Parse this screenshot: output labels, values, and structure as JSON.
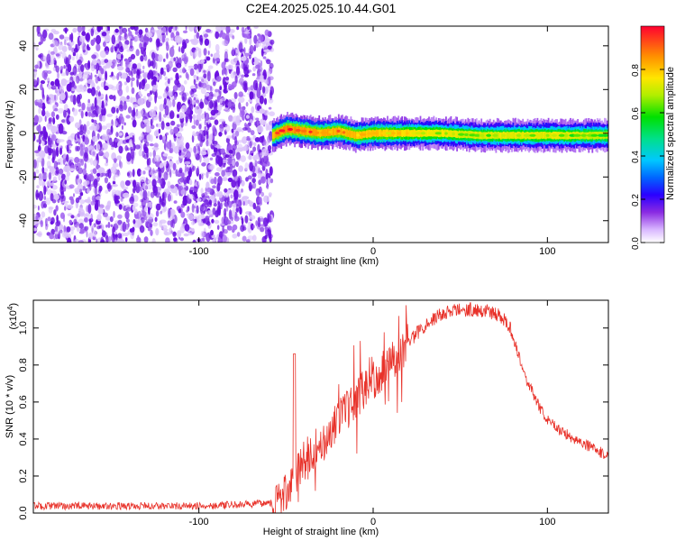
{
  "title": "C2E4.2025.025.10.44.G01",
  "chart_data": [
    {
      "type": "heatmap",
      "xlabel": "Height of straight line (km)",
      "ylabel": "Frequency (Hz)",
      "xlim": [
        -195,
        135
      ],
      "ylim": [
        -50,
        49
      ],
      "xticks": [
        -100,
        0,
        100
      ],
      "yticks": [
        -40,
        -20,
        0,
        20,
        40
      ],
      "noise_region_x": [
        -195,
        -58
      ],
      "signal_track": {
        "x": [
          -58,
          -50,
          -40,
          -30,
          -20,
          -10,
          0,
          20,
          40,
          60,
          80,
          100,
          120,
          135
        ],
        "center_hz": [
          -1,
          2,
          1,
          0,
          1,
          -1,
          0,
          0,
          0,
          -1,
          -1,
          -1,
          -1,
          -1
        ],
        "peak_amplitude": [
          0.9,
          1.0,
          0.95,
          0.9,
          0.9,
          0.85,
          0.85,
          0.8,
          0.7,
          0.65,
          0.7,
          0.7,
          0.65,
          0.6
        ]
      },
      "colorbar": {
        "label": "Normalized spectral amplitude",
        "range": [
          0,
          1
        ],
        "ticks": [
          "0.0",
          "0.2",
          "0.4",
          "0.6",
          "0.8"
        ]
      }
    },
    {
      "type": "line",
      "xlabel": "Height of straight line (km)",
      "ylabel": "SNR (10 * v/v)",
      "y_multiplier": "(x10",
      "y_multiplier_exp": "4",
      "y_multiplier_close": ")",
      "xlim": [
        -195,
        135
      ],
      "ylim": [
        0,
        1.15
      ],
      "xticks": [
        -100,
        0,
        100
      ],
      "yticks": [
        0,
        0.2,
        0.4,
        0.6,
        0.8,
        1.0
      ],
      "ytick_labels": [
        "0.0",
        "0.2",
        "0.4",
        "0.6",
        "0.8",
        "1.0"
      ],
      "color": "#e8322a",
      "series": [
        {
          "x": [
            -195,
            -150,
            -100,
            -70,
            -58,
            -50,
            -45,
            -40,
            -30,
            -20,
            -10,
            0,
            10,
            20,
            30,
            40,
            50,
            60,
            70,
            78,
            82,
            88,
            95,
            100,
            110,
            120,
            130,
            135
          ],
          "y": [
            0.03,
            0.03,
            0.03,
            0.04,
            0.05,
            0.1,
            0.22,
            0.28,
            0.38,
            0.5,
            0.62,
            0.72,
            0.82,
            0.92,
            1.02,
            1.08,
            1.1,
            1.1,
            1.08,
            1.02,
            0.9,
            0.72,
            0.58,
            0.5,
            0.43,
            0.38,
            0.33,
            0.31
          ]
        }
      ]
    }
  ]
}
